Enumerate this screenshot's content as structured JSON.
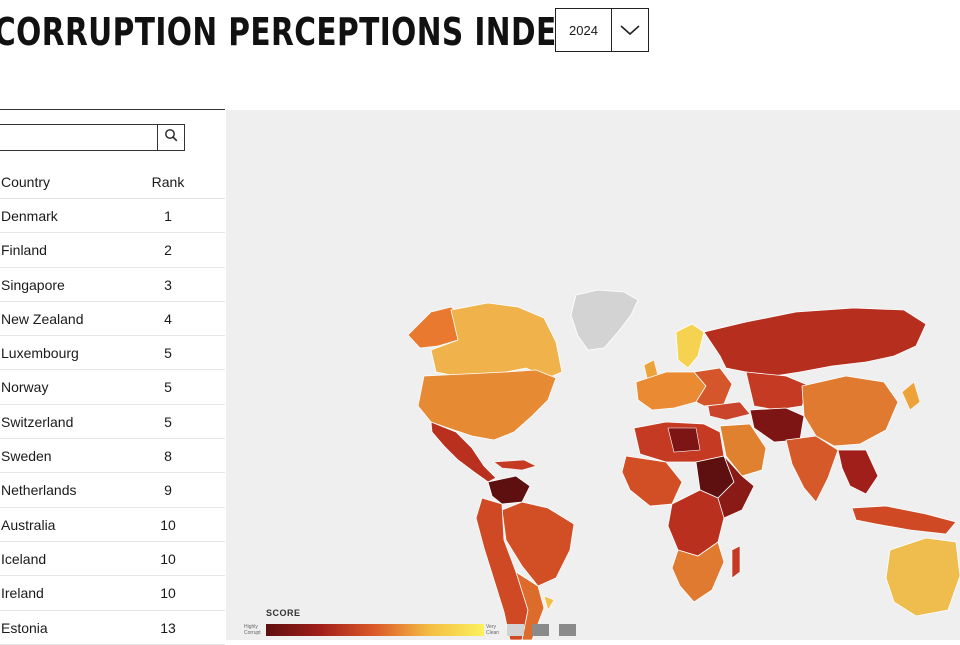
{
  "header": {
    "title": "CORRUPTION PERCEPTIONS INDEX",
    "year_selected": "2024"
  },
  "search": {
    "value": "",
    "placeholder": ""
  },
  "table": {
    "columns": [
      "Country",
      "Rank"
    ],
    "rows": [
      {
        "country": "Denmark",
        "rank": "1"
      },
      {
        "country": "Finland",
        "rank": "2"
      },
      {
        "country": "Singapore",
        "rank": "3"
      },
      {
        "country": "New Zealand",
        "rank": "4"
      },
      {
        "country": "Luxembourg",
        "rank": "5"
      },
      {
        "country": "Norway",
        "rank": "5"
      },
      {
        "country": "Switzerland",
        "rank": "5"
      },
      {
        "country": "Sweden",
        "rank": "8"
      },
      {
        "country": "Netherlands",
        "rank": "9"
      },
      {
        "country": "Australia",
        "rank": "10"
      },
      {
        "country": "Iceland",
        "rank": "10"
      },
      {
        "country": "Ireland",
        "rank": "10"
      },
      {
        "country": "Estonia",
        "rank": "13"
      }
    ]
  },
  "map": {
    "legend_title": "SCORE",
    "legend_low": "Highly Corrupt",
    "legend_high": "Very Clean",
    "colors": {
      "no_data": "#d3d3d3",
      "ocean": "#efefef",
      "very_clean": "#fbf15c",
      "highly_corrupt": "#5e0f0f"
    }
  },
  "icons": {
    "search": "search-icon",
    "dropdown": "chevron-down-icon"
  }
}
